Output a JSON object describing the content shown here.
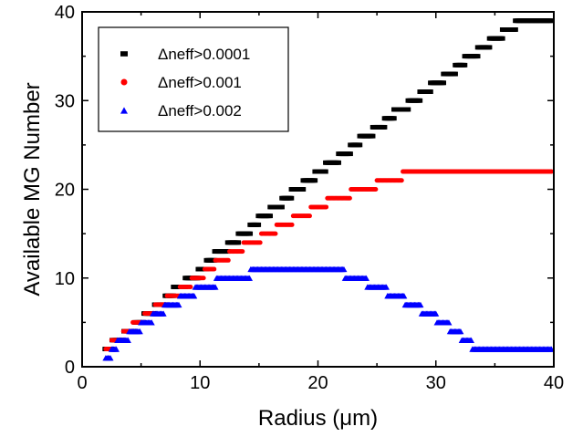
{
  "chart_data": {
    "type": "scatter",
    "title": "",
    "xlabel": "Radius (μm)",
    "ylabel": "Available MG Number",
    "xlim": [
      0,
      40
    ],
    "ylim": [
      0,
      40
    ],
    "xticks": [
      0,
      10,
      20,
      30,
      40
    ],
    "yticks": [
      0,
      10,
      20,
      30,
      40
    ],
    "xtick_labels": [
      "0",
      "10",
      "20",
      "30",
      "40"
    ],
    "ytick_labels": [
      "0",
      "10",
      "20",
      "30",
      "40"
    ],
    "grid": false,
    "legend_position": "top-left",
    "x_step": 0.1,
    "series": [
      {
        "name": "Δneff>0.0001",
        "color": "#000000",
        "marker": "square",
        "steps": [
          [
            2,
            2
          ],
          [
            2.6,
            3
          ],
          [
            3.6,
            4
          ],
          [
            4.5,
            5
          ],
          [
            5.3,
            6
          ],
          [
            6.2,
            7
          ],
          [
            7.1,
            8
          ],
          [
            7.8,
            9
          ],
          [
            8.8,
            10
          ],
          [
            9.9,
            11
          ],
          [
            10.6,
            12
          ],
          [
            11.3,
            13
          ],
          [
            12.4,
            14
          ],
          [
            13.3,
            15
          ],
          [
            14.3,
            16
          ],
          [
            15.0,
            17
          ],
          [
            16.0,
            18
          ],
          [
            17.0,
            19
          ],
          [
            17.8,
            20
          ],
          [
            18.8,
            21
          ],
          [
            19.8,
            22
          ],
          [
            20.7,
            23
          ],
          [
            21.8,
            24
          ],
          [
            22.8,
            25
          ],
          [
            23.6,
            26
          ],
          [
            24.7,
            27
          ],
          [
            25.7,
            28
          ],
          [
            26.5,
            29
          ],
          [
            27.7,
            30
          ],
          [
            28.7,
            31
          ],
          [
            29.6,
            32
          ],
          [
            30.7,
            33
          ],
          [
            31.7,
            34
          ],
          [
            32.5,
            35
          ],
          [
            33.6,
            36
          ],
          [
            34.6,
            37
          ],
          [
            35.7,
            38
          ],
          [
            36.8,
            39
          ],
          [
            37.8,
            39
          ]
        ],
        "x_end": 39.8
      },
      {
        "name": "Δneff>0.001",
        "color": "#ff0000",
        "marker": "circle",
        "steps": [
          [
            2,
            2
          ],
          [
            2.5,
            3
          ],
          [
            3.5,
            4
          ],
          [
            4.3,
            5
          ],
          [
            5.3,
            6
          ],
          [
            6.2,
            7
          ],
          [
            7.2,
            8
          ],
          [
            8.3,
            9
          ],
          [
            9.3,
            10
          ],
          [
            10.4,
            11
          ],
          [
            11.3,
            12
          ],
          [
            12.5,
            13
          ],
          [
            13.7,
            14
          ],
          [
            15.2,
            15
          ],
          [
            16.5,
            16
          ],
          [
            17.9,
            17
          ],
          [
            19.4,
            18
          ],
          [
            20.8,
            19
          ],
          [
            22.8,
            20
          ],
          [
            25.0,
            21
          ],
          [
            27.2,
            22
          ]
        ],
        "x_end": 39.8
      },
      {
        "name": "Δneff>0.002",
        "color": "#0000ff",
        "marker": "triangle",
        "steps": [
          [
            2,
            1
          ],
          [
            2.5,
            2
          ],
          [
            3,
            3
          ],
          [
            4,
            4
          ],
          [
            5,
            5
          ],
          [
            6,
            6
          ],
          [
            7,
            7
          ],
          [
            8.3,
            8
          ],
          [
            9.6,
            9
          ],
          [
            11.4,
            10
          ],
          [
            14.3,
            11
          ],
          [
            22.3,
            10
          ],
          [
            24.2,
            9
          ],
          [
            25.9,
            8
          ],
          [
            27.4,
            7
          ],
          [
            28.8,
            6
          ],
          [
            30.1,
            5
          ],
          [
            31.2,
            4
          ],
          [
            32.2,
            3
          ],
          [
            33.1,
            2
          ]
        ],
        "x_end": 39.8
      }
    ]
  }
}
